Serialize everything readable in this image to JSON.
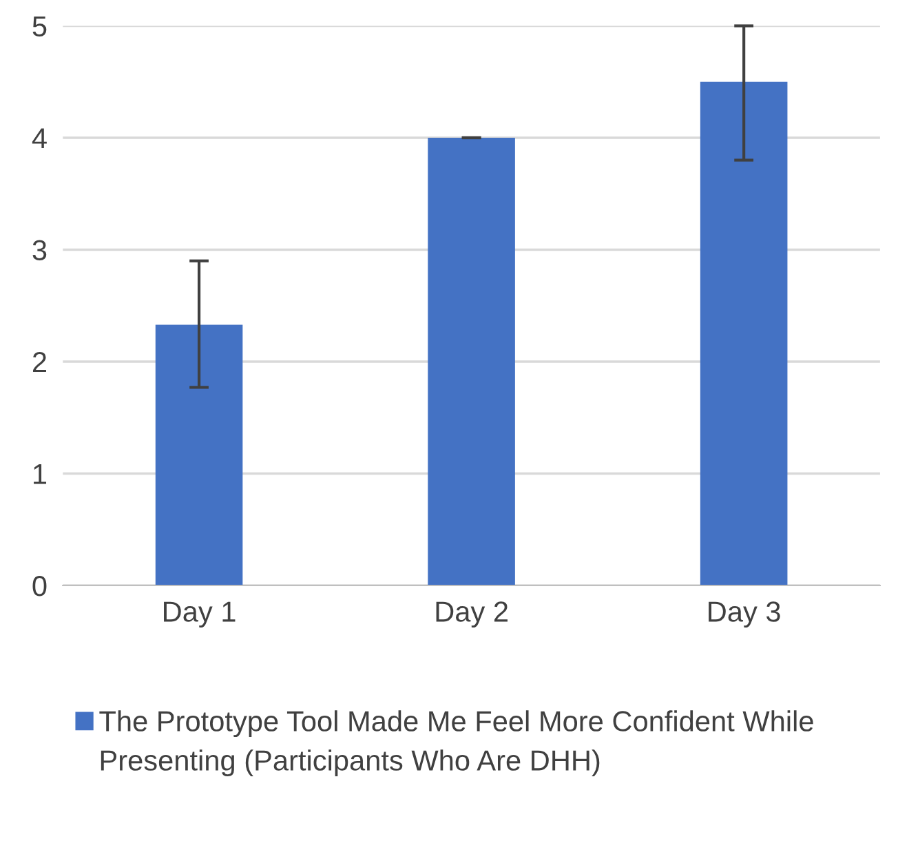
{
  "chart_data": {
    "type": "bar",
    "categories": [
      "Day 1",
      "Day 2",
      "Day 3"
    ],
    "series": [
      {
        "name": "The Prototype Tool Made Me Feel More Confident While Presenting (Participants Who Are DHH)",
        "color": "#4472c4",
        "values": [
          2.33,
          4.0,
          4.5
        ],
        "errors": [
          [
            1.77,
            2.9
          ],
          [
            4.0,
            4.0
          ],
          [
            3.8,
            5.0
          ]
        ]
      }
    ],
    "ylim": [
      0,
      5
    ],
    "yticks": [
      0,
      1,
      2,
      3,
      4,
      5
    ],
    "grid": "y",
    "legend": "bottom"
  }
}
